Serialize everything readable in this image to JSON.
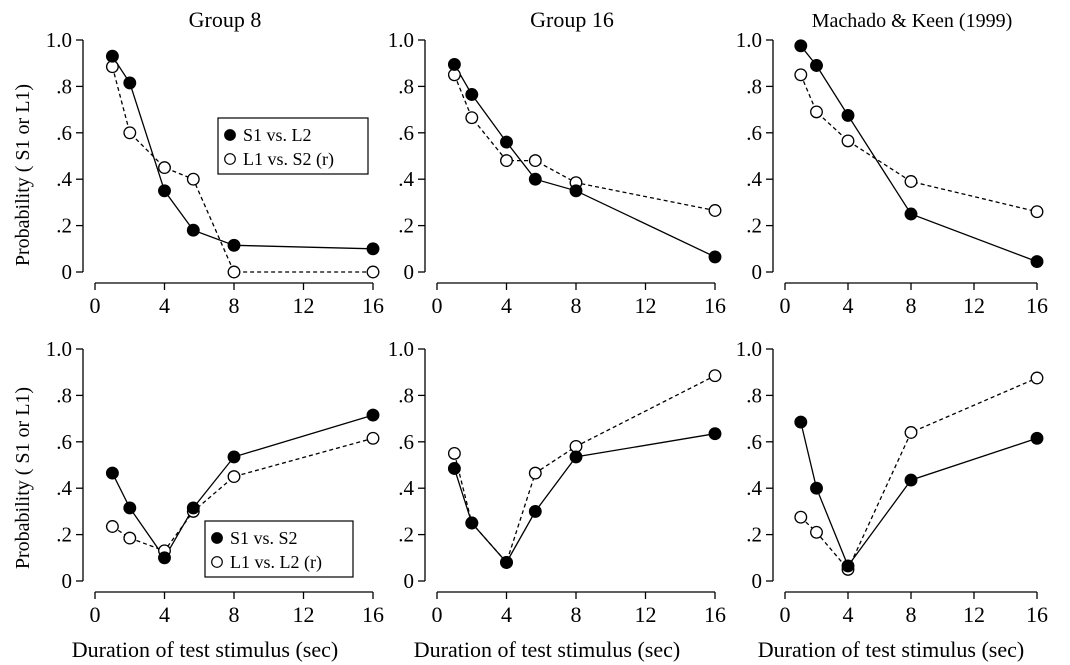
{
  "figure": {
    "ylabel": "Probability ( S1 or L1)",
    "xlabel": "Duration of test stimulus (sec)"
  },
  "chart_data": [
    {
      "type": "line",
      "title": "Group 8",
      "xlim": [
        0,
        16
      ],
      "ylim": [
        0,
        1.0
      ],
      "xticks": [
        "0",
        "4",
        "8",
        "12",
        "16"
      ],
      "yticks": [
        "0",
        ".2",
        ".4",
        ".6",
        ".8",
        "1.0"
      ],
      "legend": {
        "placement": "upper-right",
        "entries": [
          "S1 vs. L2",
          "L1 vs. S2 (r)"
        ]
      },
      "series": [
        {
          "name": "S1 vs. L2",
          "marker": "filled",
          "line": "solid",
          "x": [
            1,
            2,
            4,
            5.66,
            8,
            16
          ],
          "y": [
            0.93,
            0.815,
            0.35,
            0.18,
            0.115,
            0.1
          ]
        },
        {
          "name": "L1 vs. S2 (r)",
          "marker": "open",
          "line": "dashed",
          "x": [
            1,
            2,
            4,
            5.66,
            8,
            16
          ],
          "y": [
            0.885,
            0.6,
            0.45,
            0.4,
            0.0,
            0.0
          ]
        }
      ]
    },
    {
      "type": "line",
      "title": "Group 16",
      "xlim": [
        0,
        16
      ],
      "ylim": [
        0,
        1.0
      ],
      "xticks": [
        "0",
        "4",
        "8",
        "12",
        "16"
      ],
      "yticks": [
        "0",
        ".2",
        ".4",
        ".6",
        ".8",
        "1.0"
      ],
      "series": [
        {
          "marker": "filled",
          "line": "solid",
          "x": [
            1,
            2,
            4,
            5.66,
            8,
            16
          ],
          "y": [
            0.895,
            0.765,
            0.56,
            0.4,
            0.35,
            0.065
          ]
        },
        {
          "marker": "open",
          "line": "dashed",
          "x": [
            1,
            2,
            4,
            5.66,
            8,
            16
          ],
          "y": [
            0.85,
            0.665,
            0.48,
            0.48,
            0.385,
            0.265
          ]
        }
      ]
    },
    {
      "type": "line",
      "title": "Machado & Keen (1999)",
      "xlim": [
        0,
        16
      ],
      "ylim": [
        0,
        1.0
      ],
      "xticks": [
        "0",
        "4",
        "8",
        "12",
        "16"
      ],
      "yticks": [
        "0",
        ".2",
        ".4",
        ".6",
        ".8",
        "1.0"
      ],
      "series": [
        {
          "marker": "filled",
          "line": "solid",
          "x": [
            1,
            2,
            4,
            8,
            16
          ],
          "y": [
            0.975,
            0.89,
            0.675,
            0.25,
            0.045
          ]
        },
        {
          "marker": "open",
          "line": "dashed",
          "x": [
            1,
            2,
            4,
            8,
            16
          ],
          "y": [
            0.85,
            0.69,
            0.565,
            0.39,
            0.26
          ]
        }
      ]
    },
    {
      "type": "line",
      "title": "",
      "xlim": [
        0,
        16
      ],
      "ylim": [
        0,
        1.0
      ],
      "xticks": [
        "0",
        "4",
        "8",
        "12",
        "16"
      ],
      "yticks": [
        "0",
        ".2",
        ".4",
        ".6",
        ".8",
        "1.0"
      ],
      "legend": {
        "placement": "lower-right",
        "entries": [
          "S1 vs. S2",
          "L1 vs. L2 (r)"
        ]
      },
      "series": [
        {
          "name": "S1 vs. S2",
          "marker": "filled",
          "line": "solid",
          "x": [
            1,
            2,
            4,
            5.66,
            8,
            16
          ],
          "y": [
            0.465,
            0.315,
            0.1,
            0.315,
            0.535,
            0.715
          ]
        },
        {
          "name": "L1 vs. L2 (r)",
          "marker": "open",
          "line": "dashed",
          "x": [
            1,
            2,
            4,
            5.66,
            8,
            16
          ],
          "y": [
            0.235,
            0.185,
            0.13,
            0.3,
            0.45,
            0.615
          ]
        }
      ]
    },
    {
      "type": "line",
      "title": "",
      "xlim": [
        0,
        16
      ],
      "ylim": [
        0,
        1.0
      ],
      "xticks": [
        "0",
        "4",
        "8",
        "12",
        "16"
      ],
      "yticks": [
        "0",
        ".2",
        ".4",
        ".6",
        ".8",
        "1.0"
      ],
      "series": [
        {
          "marker": "filled",
          "line": "solid",
          "x": [
            1,
            2,
            4,
            5.66,
            8,
            16
          ],
          "y": [
            0.485,
            0.25,
            0.08,
            0.3,
            0.535,
            0.635
          ]
        },
        {
          "marker": "open",
          "line": "dashed",
          "x": [
            1,
            2,
            4,
            5.66,
            8,
            16
          ],
          "y": [
            0.55,
            0.25,
            0.08,
            0.465,
            0.58,
            0.885
          ]
        }
      ]
    },
    {
      "type": "line",
      "title": "",
      "xlim": [
        0,
        16
      ],
      "ylim": [
        0,
        1.0
      ],
      "xticks": [
        "0",
        "4",
        "8",
        "12",
        "16"
      ],
      "yticks": [
        "0",
        ".2",
        ".4",
        ".6",
        ".8",
        "1.0"
      ],
      "series": [
        {
          "marker": "filled",
          "line": "solid",
          "x": [
            1,
            2,
            4,
            8,
            16
          ],
          "y": [
            0.685,
            0.4,
            0.065,
            0.435,
            0.615
          ]
        },
        {
          "marker": "open",
          "line": "dashed",
          "x": [
            1,
            2,
            4,
            8,
            16
          ],
          "y": [
            0.275,
            0.21,
            0.05,
            0.64,
            0.875
          ]
        }
      ]
    }
  ]
}
